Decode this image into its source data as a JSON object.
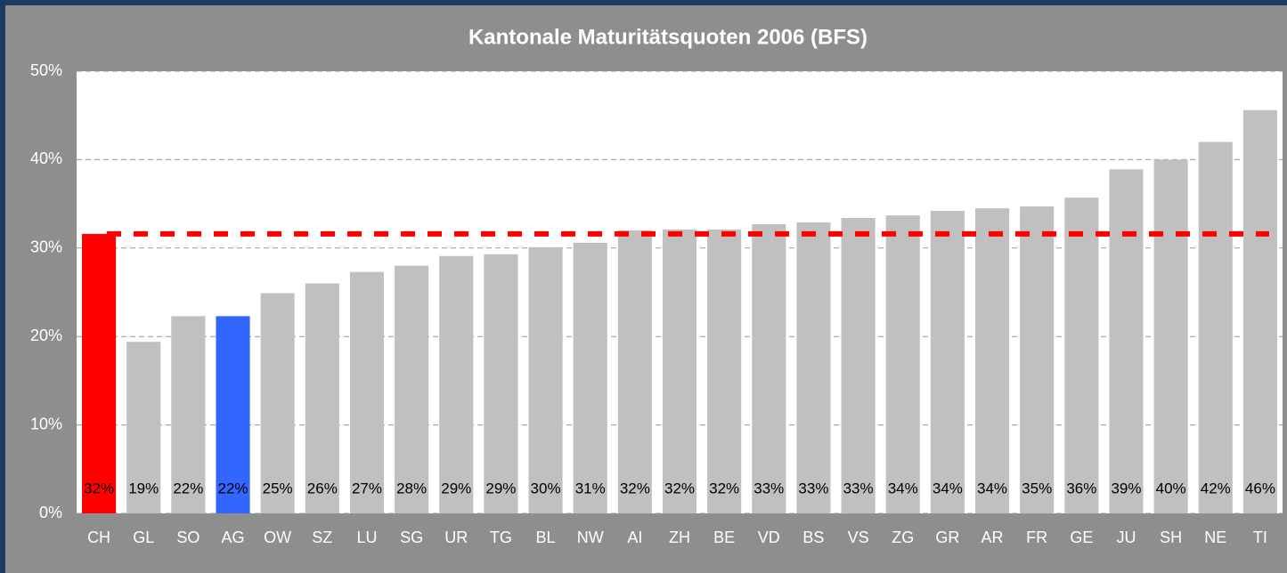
{
  "chart_data": {
    "type": "bar",
    "title": "Kantonale Maturitätsquoten 2006 (BFS)",
    "categories": [
      "CH",
      "GL",
      "SO",
      "AG",
      "OW",
      "SZ",
      "LU",
      "SG",
      "UR",
      "TG",
      "BL",
      "NW",
      "AI",
      "ZH",
      "BE",
      "VD",
      "BS",
      "VS",
      "ZG",
      "GR",
      "AR",
      "FR",
      "GE",
      "JU",
      "SH",
      "NE",
      "TI"
    ],
    "values": [
      31.6,
      19.4,
      22.3,
      22.3,
      24.9,
      26.0,
      27.3,
      28.0,
      29.1,
      29.3,
      30.1,
      30.6,
      32.0,
      32.1,
      32.1,
      32.7,
      32.9,
      33.4,
      33.7,
      34.2,
      34.5,
      34.7,
      35.7,
      38.9,
      40.0,
      42.0,
      45.6
    ],
    "value_labels": [
      "32%",
      "19%",
      "22%",
      "22%",
      "25%",
      "26%",
      "27%",
      "28%",
      "29%",
      "29%",
      "30%",
      "31%",
      "32%",
      "32%",
      "32%",
      "33%",
      "33%",
      "33%",
      "34%",
      "34%",
      "34%",
      "35%",
      "36%",
      "39%",
      "40%",
      "42%",
      "46%"
    ],
    "colors": [
      "#ff0000",
      "#c0c0c0",
      "#c0c0c0",
      "#3366ff",
      "#c0c0c0",
      "#c0c0c0",
      "#c0c0c0",
      "#c0c0c0",
      "#c0c0c0",
      "#c0c0c0",
      "#c0c0c0",
      "#c0c0c0",
      "#c0c0c0",
      "#c0c0c0",
      "#c0c0c0",
      "#c0c0c0",
      "#c0c0c0",
      "#c0c0c0",
      "#c0c0c0",
      "#c0c0c0",
      "#c0c0c0",
      "#c0c0c0",
      "#c0c0c0",
      "#c0c0c0",
      "#c0c0c0",
      "#c0c0c0",
      "#c0c0c0"
    ],
    "reference_line": {
      "value": 31.6,
      "color": "#ff0000"
    },
    "ylim": [
      0,
      50
    ],
    "yticks": [
      {
        "value": 0,
        "label": "0%"
      },
      {
        "value": 10,
        "label": "10%"
      },
      {
        "value": 20,
        "label": "20%"
      },
      {
        "value": 30,
        "label": "30%"
      },
      {
        "value": 40,
        "label": "40%"
      },
      {
        "value": 50,
        "label": "50%"
      }
    ],
    "grid": true
  }
}
